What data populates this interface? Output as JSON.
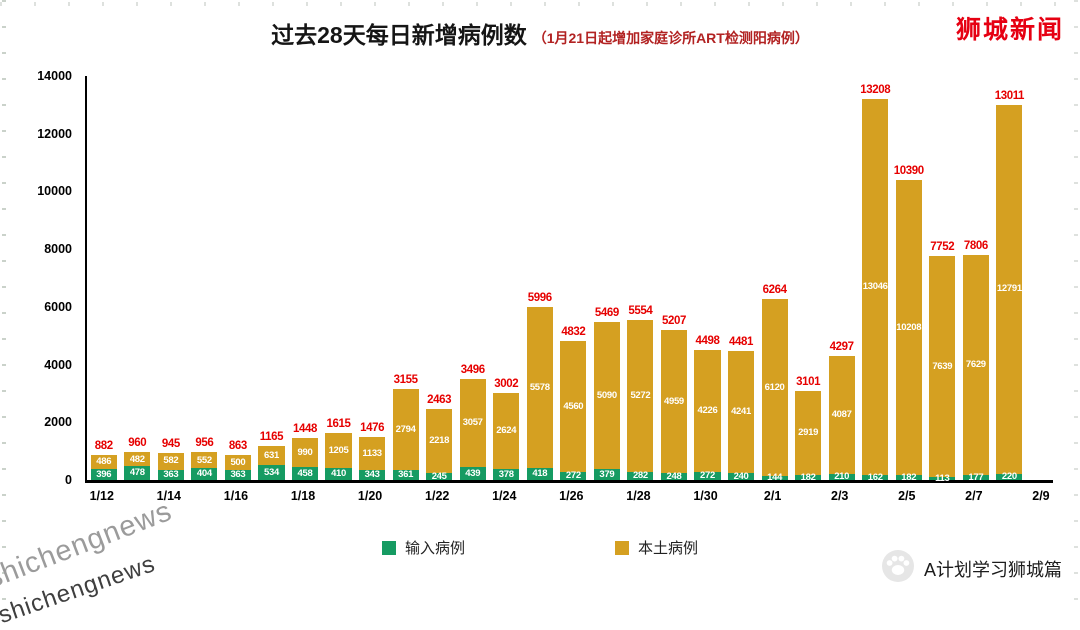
{
  "page": {
    "brand_top_right": "狮城新闻",
    "watermark": "shichengnews",
    "footer_brand": "A计划学习狮城篇"
  },
  "chart_data": {
    "type": "bar",
    "stacked": true,
    "title": "过去28天每日新增病例数",
    "subtitle": "（1月21日起增加家庭诊所ART检测阳病例）",
    "xlabel": "",
    "ylabel": "",
    "ylim": [
      0,
      14000
    ],
    "y_ticks": [
      0,
      2000,
      4000,
      6000,
      8000,
      10000,
      12000,
      14000
    ],
    "grid": false,
    "x_tick_labels": [
      "1/12",
      "1/14",
      "1/16",
      "1/18",
      "1/20",
      "1/22",
      "1/24",
      "1/26",
      "1/28",
      "1/30",
      "2/1",
      "2/3",
      "2/5",
      "2/7",
      "2/9"
    ],
    "dates": [
      "1/12",
      "1/13",
      "1/14",
      "1/15",
      "1/16",
      "1/17",
      "1/18",
      "1/19",
      "1/20",
      "1/21",
      "1/22",
      "1/23",
      "1/24",
      "1/25",
      "1/26",
      "1/27",
      "1/28",
      "1/29",
      "1/30",
      "1/31",
      "2/1",
      "2/2",
      "2/3",
      "2/4",
      "2/5",
      "2/6",
      "2/7",
      "2/8"
    ],
    "series": [
      {
        "name": "输入病例",
        "values": [
          396,
          478,
          363,
          404,
          363,
          534,
          458,
          410,
          343,
          361,
          245,
          439,
          378,
          418,
          272,
          379,
          282,
          248,
          272,
          240,
          144,
          182,
          210,
          162,
          182,
          113,
          177,
          220
        ]
      },
      {
        "name": "本土病例",
        "values": [
          486,
          482,
          582,
          552,
          500,
          631,
          990,
          1205,
          1133,
          2794,
          2218,
          3057,
          2624,
          5578,
          4560,
          5090,
          5272,
          4959,
          4226,
          4241,
          6120,
          2919,
          4087,
          13046,
          10208,
          7639,
          7629,
          12791
        ]
      }
    ],
    "totals": [
      882,
      960,
      945,
      956,
      863,
      1165,
      1448,
      1615,
      1476,
      3155,
      2463,
      3496,
      3002,
      5996,
      4832,
      5469,
      5554,
      5207,
      4498,
      4481,
      6264,
      3101,
      4297,
      13208,
      10390,
      7752,
      7806,
      13011
    ],
    "legend": {
      "imported": "输入病例",
      "local": "本土病例",
      "position": "bottom"
    },
    "colors": {
      "imported": "#169b62",
      "local": "#d5a021",
      "total_label": "#e60000"
    }
  }
}
